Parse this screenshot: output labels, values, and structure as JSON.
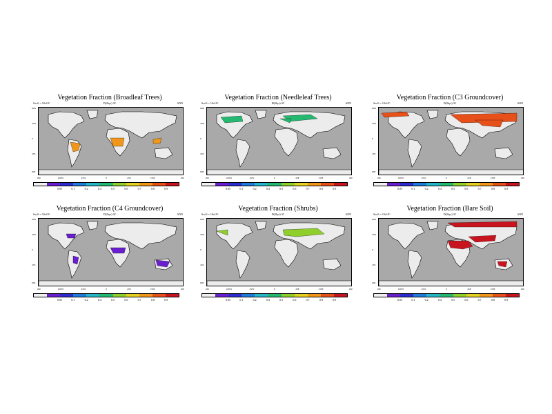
{
  "figure": {
    "colorbar_colors": [
      "#f0f0f0",
      "#6a1fcf",
      "#2c2cd0",
      "#1f7ad9",
      "#25b6c9",
      "#25b870",
      "#8fce2b",
      "#e3d21f",
      "#f0961a",
      "#e8501a",
      "#c8141e"
    ],
    "colorbar_labels": [
      "0.05",
      "0.1",
      "0.2",
      "0.4",
      "0.5",
      "0.6",
      "0.7",
      "0.8",
      "0.9"
    ],
    "lat_labels": [
      "90N",
      "45N",
      "0",
      "45S",
      "90S"
    ],
    "lon_labels": [
      "180",
      "100W",
      "45W",
      "0",
      "45E",
      "135E",
      "180"
    ],
    "land_color": "#ececec",
    "ocean_color": "#a9a9a9",
    "panels": [
      {
        "title": "Vegetation Fraction (Broadleaf Trees)",
        "subtitle": "D(2kyr) 3C",
        "units": "Sw/ft = 10x10^",
        "season": "ANN",
        "highlight": "tropical-forest",
        "highlight_color": "#f0961a"
      },
      {
        "title": "Vegetation Fraction (Needleleaf Trees)",
        "subtitle": "D(2kyr) 3C",
        "units": "Sw/ft = 10x10^",
        "season": "ANN",
        "highlight": "boreal-forest",
        "highlight_color": "#25b870"
      },
      {
        "title": "Vegetation Fraction (C3 Groundcover)",
        "subtitle": "D(2kyr) 3C",
        "units": "Sw/ft = 10x10^",
        "season": "ANN",
        "highlight": "high-latitude",
        "highlight_color": "#e8501a"
      },
      {
        "title": "Vegetation Fraction (C4 Groundcover)",
        "subtitle": "D(2kyr) 3C",
        "units": "Sw/ft = 10x10^",
        "season": "ANN",
        "highlight": "savanna",
        "highlight_color": "#6a1fcf"
      },
      {
        "title": "Vegetation Fraction (Shrubs)",
        "subtitle": "D(2kyr) 3C",
        "units": "Sw/ft = 10x10^",
        "season": "ANN",
        "highlight": "steppe",
        "highlight_color": "#8fce2b"
      },
      {
        "title": "Vegetation Fraction (Bare Soil)",
        "subtitle": "D(2kyr) 3C",
        "units": "Sw/ft = 10x10^",
        "season": "ANN",
        "highlight": "desert",
        "highlight_color": "#c8141e"
      }
    ]
  }
}
